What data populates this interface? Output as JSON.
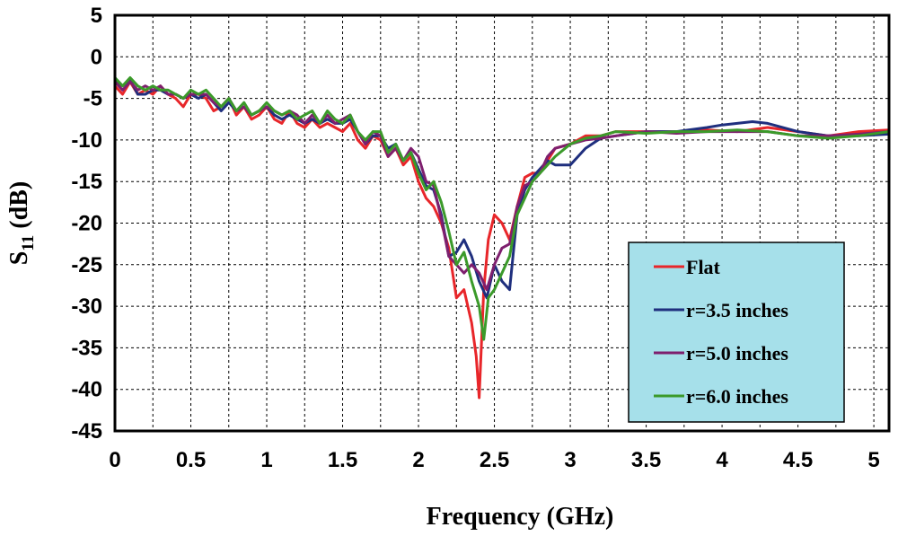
{
  "chart_data": {
    "type": "line",
    "xlabel": "Frequency (GHz)",
    "ylabel": "S",
    "ylabel_sub": "11",
    "ylabel_suffix": " (dB)",
    "xlim": [
      0,
      5.1
    ],
    "ylim": [
      -45,
      5
    ],
    "x_ticks": [
      0,
      0.5,
      1,
      1.5,
      2,
      2.5,
      3,
      3.5,
      4,
      4.5,
      5
    ],
    "x_tick_labels": [
      "0",
      "0.5",
      "1",
      "1.5",
      "2",
      "2.5",
      "3",
      "3.5",
      "4",
      "4.5",
      "5"
    ],
    "y_ticks": [
      5,
      0,
      -5,
      -10,
      -15,
      -20,
      -25,
      -30,
      -35,
      -40,
      -45
    ],
    "y_tick_labels": [
      "5",
      "0",
      "-5",
      "-10",
      "-15",
      "-20",
      "-25",
      "-30",
      "-35",
      "-40",
      "-45"
    ],
    "x_grid_step": 0.25,
    "grid": true,
    "legend": {
      "position": "bottom-right",
      "background": "#A6E0EA"
    },
    "series": [
      {
        "name": "Flat",
        "color": "#E8262A",
        "x": [
          0,
          0.05,
          0.1,
          0.15,
          0.2,
          0.25,
          0.3,
          0.35,
          0.4,
          0.45,
          0.5,
          0.55,
          0.6,
          0.65,
          0.7,
          0.75,
          0.8,
          0.85,
          0.9,
          0.95,
          1.0,
          1.05,
          1.1,
          1.15,
          1.2,
          1.25,
          1.3,
          1.35,
          1.4,
          1.45,
          1.5,
          1.55,
          1.6,
          1.65,
          1.7,
          1.75,
          1.8,
          1.85,
          1.9,
          1.95,
          2.0,
          2.05,
          2.1,
          2.15,
          2.2,
          2.25,
          2.3,
          2.35,
          2.38,
          2.4,
          2.43,
          2.46,
          2.5,
          2.55,
          2.6,
          2.65,
          2.7,
          2.75,
          2.8,
          2.85,
          2.9,
          3.0,
          3.1,
          3.2,
          3.3,
          3.5,
          3.7,
          3.9,
          4.1,
          4.3,
          4.5,
          4.7,
          4.9,
          5.1
        ],
        "y": [
          -3.5,
          -4.5,
          -3.0,
          -4.5,
          -4.0,
          -4.5,
          -3.5,
          -4.5,
          -5.0,
          -6.0,
          -4.5,
          -4.5,
          -5.0,
          -6.5,
          -6.0,
          -5.0,
          -7.0,
          -6.0,
          -7.5,
          -7.0,
          -6.0,
          -7.5,
          -8.0,
          -6.5,
          -8.0,
          -8.5,
          -7.5,
          -8.5,
          -8.0,
          -8.5,
          -9.0,
          -8.0,
          -10.0,
          -11.0,
          -9.5,
          -10.0,
          -12.0,
          -11.0,
          -13.0,
          -12.0,
          -15.0,
          -17.0,
          -18.0,
          -20.0,
          -23.0,
          -29.0,
          -28.0,
          -32.0,
          -36.0,
          -41.0,
          -28.0,
          -22.0,
          -19.0,
          -20.0,
          -22.0,
          -18.0,
          -14.5,
          -14.0,
          -14.0,
          -12.5,
          -11.0,
          -10.5,
          -9.5,
          -9.5,
          -9.0,
          -9.0,
          -9.0,
          -8.8,
          -9.0,
          -8.5,
          -9.0,
          -9.5,
          -9.0,
          -8.8
        ]
      },
      {
        "name": "r=3.5 inches",
        "color": "#1F2F7E",
        "x": [
          0,
          0.05,
          0.1,
          0.15,
          0.2,
          0.25,
          0.3,
          0.35,
          0.4,
          0.45,
          0.5,
          0.55,
          0.6,
          0.65,
          0.7,
          0.75,
          0.8,
          0.85,
          0.9,
          0.95,
          1.0,
          1.05,
          1.1,
          1.15,
          1.2,
          1.25,
          1.3,
          1.35,
          1.4,
          1.45,
          1.5,
          1.55,
          1.6,
          1.65,
          1.7,
          1.75,
          1.8,
          1.85,
          1.9,
          1.95,
          2.0,
          2.05,
          2.1,
          2.15,
          2.2,
          2.25,
          2.3,
          2.35,
          2.4,
          2.45,
          2.5,
          2.55,
          2.6,
          2.65,
          2.7,
          2.75,
          2.8,
          2.85,
          2.9,
          3.0,
          3.1,
          3.2,
          3.3,
          3.5,
          3.7,
          3.9,
          4.0,
          4.1,
          4.2,
          4.3,
          4.5,
          4.7,
          4.9,
          5.1
        ],
        "y": [
          -3.0,
          -3.5,
          -2.7,
          -4.5,
          -4.5,
          -4.0,
          -4.0,
          -4.5,
          -4.5,
          -5.0,
          -4.5,
          -5.0,
          -4.5,
          -5.5,
          -6.5,
          -5.5,
          -6.5,
          -6.0,
          -7.0,
          -6.5,
          -6.0,
          -7.0,
          -7.5,
          -7.0,
          -7.5,
          -8.0,
          -7.5,
          -8.0,
          -7.5,
          -8.0,
          -8.0,
          -7.5,
          -9.0,
          -10.5,
          -9.5,
          -9.5,
          -11.0,
          -10.5,
          -12.5,
          -11.5,
          -13.5,
          -15.5,
          -16.0,
          -19.0,
          -24.0,
          -23.5,
          -22.0,
          -24.0,
          -27.0,
          -29.0,
          -25.0,
          -27.0,
          -28.0,
          -19.0,
          -16.0,
          -14.5,
          -13.5,
          -12.5,
          -13.0,
          -13.0,
          -11.0,
          -9.8,
          -9.5,
          -9.0,
          -9.0,
          -8.5,
          -8.2,
          -8.0,
          -7.8,
          -8.0,
          -9.0,
          -9.5,
          -9.5,
          -9.3
        ]
      },
      {
        "name": "r=5.0 inches",
        "color": "#7E1F6E",
        "x": [
          0,
          0.05,
          0.1,
          0.15,
          0.2,
          0.25,
          0.3,
          0.35,
          0.4,
          0.45,
          0.5,
          0.55,
          0.6,
          0.65,
          0.7,
          0.75,
          0.8,
          0.85,
          0.9,
          0.95,
          1.0,
          1.05,
          1.1,
          1.15,
          1.2,
          1.25,
          1.3,
          1.35,
          1.4,
          1.45,
          1.5,
          1.55,
          1.6,
          1.65,
          1.7,
          1.75,
          1.8,
          1.85,
          1.9,
          1.95,
          2.0,
          2.05,
          2.1,
          2.15,
          2.2,
          2.25,
          2.3,
          2.35,
          2.4,
          2.45,
          2.5,
          2.55,
          2.6,
          2.65,
          2.7,
          2.75,
          2.8,
          2.85,
          2.9,
          3.0,
          3.1,
          3.2,
          3.3,
          3.5,
          3.7,
          3.9,
          4.1,
          4.3,
          4.5,
          4.7,
          4.9,
          5.1
        ],
        "y": [
          -3.0,
          -4.0,
          -3.0,
          -4.0,
          -3.5,
          -4.0,
          -3.5,
          -4.5,
          -4.5,
          -5.0,
          -4.5,
          -4.5,
          -4.5,
          -5.5,
          -6.0,
          -5.0,
          -6.5,
          -6.0,
          -7.0,
          -6.5,
          -6.0,
          -6.5,
          -7.0,
          -6.5,
          -7.0,
          -8.0,
          -7.0,
          -8.0,
          -7.0,
          -8.0,
          -7.5,
          -7.0,
          -9.0,
          -10.5,
          -9.0,
          -9.5,
          -12.0,
          -11.0,
          -12.5,
          -11.0,
          -12.0,
          -15.0,
          -15.5,
          -19.5,
          -24.0,
          -25.0,
          -26.0,
          -25.0,
          -26.0,
          -28.0,
          -25.0,
          -23.0,
          -22.5,
          -18.0,
          -15.5,
          -15.0,
          -14.0,
          -12.0,
          -11.0,
          -10.5,
          -10.0,
          -9.8,
          -9.5,
          -9.0,
          -9.2,
          -9.0,
          -9.0,
          -9.0,
          -9.5,
          -9.5,
          -9.3,
          -9.0
        ]
      },
      {
        "name": "r=6.0 inches",
        "color": "#3B9A2A",
        "x": [
          0,
          0.05,
          0.1,
          0.15,
          0.2,
          0.25,
          0.3,
          0.35,
          0.4,
          0.45,
          0.5,
          0.55,
          0.6,
          0.65,
          0.7,
          0.75,
          0.8,
          0.85,
          0.9,
          0.95,
          1.0,
          1.05,
          1.1,
          1.15,
          1.2,
          1.25,
          1.3,
          1.35,
          1.4,
          1.45,
          1.5,
          1.55,
          1.6,
          1.65,
          1.7,
          1.75,
          1.8,
          1.85,
          1.9,
          1.95,
          2.0,
          2.05,
          2.1,
          2.15,
          2.2,
          2.25,
          2.3,
          2.35,
          2.4,
          2.43,
          2.46,
          2.5,
          2.55,
          2.6,
          2.65,
          2.7,
          2.75,
          2.8,
          2.85,
          2.9,
          3.0,
          3.1,
          3.2,
          3.3,
          3.5,
          3.7,
          3.9,
          4.1,
          4.3,
          4.5,
          4.7,
          4.9,
          5.1
        ],
        "y": [
          -2.5,
          -3.5,
          -2.5,
          -3.5,
          -4.0,
          -3.5,
          -4.0,
          -4.0,
          -4.5,
          -5.0,
          -4.0,
          -4.5,
          -4.0,
          -5.0,
          -6.0,
          -5.0,
          -6.5,
          -5.5,
          -7.0,
          -6.5,
          -5.5,
          -6.5,
          -7.0,
          -6.5,
          -7.5,
          -7.0,
          -6.5,
          -8.0,
          -6.5,
          -7.5,
          -8.0,
          -7.0,
          -9.0,
          -10.0,
          -9.0,
          -9.0,
          -11.5,
          -10.5,
          -12.5,
          -11.5,
          -14.0,
          -16.0,
          -15.0,
          -17.5,
          -21.0,
          -25.0,
          -23.5,
          -27.0,
          -30.0,
          -34.0,
          -29.0,
          -28.0,
          -26.0,
          -24.0,
          -19.0,
          -17.0,
          -15.0,
          -14.0,
          -13.0,
          -12.0,
          -10.5,
          -9.8,
          -9.5,
          -9.0,
          -9.2,
          -9.0,
          -9.0,
          -8.8,
          -9.0,
          -9.5,
          -9.8,
          -9.5,
          -9.0
        ]
      }
    ]
  }
}
